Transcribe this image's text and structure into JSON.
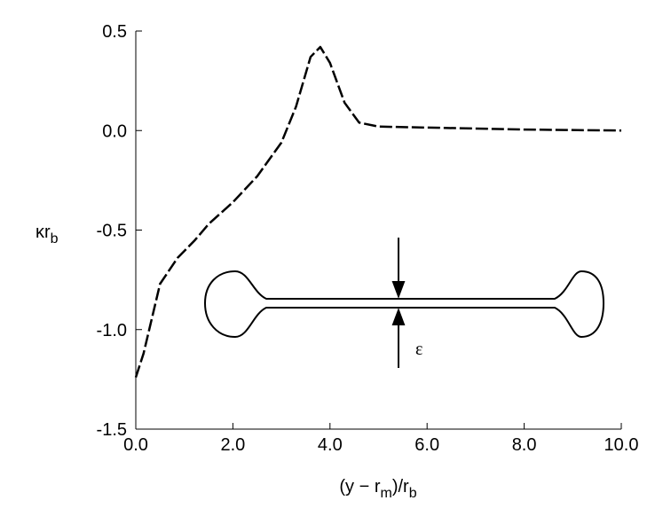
{
  "chart_data": {
    "type": "line",
    "x_label": [
      "(y − r",
      "m",
      ")/r",
      "b"
    ],
    "y_label": [
      "κr",
      "b"
    ],
    "inset_label": "ε",
    "x": [
      0.0,
      0.16,
      0.5,
      0.86,
      1.22,
      1.5,
      2.0,
      2.5,
      3.0,
      3.3,
      3.6,
      3.8,
      4.0,
      4.3,
      4.6,
      5.0,
      6.0,
      7.0,
      8.0,
      10.0
    ],
    "series": [
      {
        "color": "#000000",
        "values": [
          -1.24,
          -1.12,
          -0.77,
          -0.64,
          -0.55,
          -0.47,
          -0.36,
          -0.23,
          -0.06,
          0.12,
          0.37,
          0.42,
          0.34,
          0.14,
          0.04,
          0.02,
          0.015,
          0.01,
          0.005,
          0.0
        ]
      }
    ],
    "xlim": [
      0,
      10
    ],
    "ylim": [
      -1.5,
      0.5
    ],
    "xticks": [
      {
        "value": 0,
        "label": "0.0"
      },
      {
        "value": 2,
        "label": "2.0"
      },
      {
        "value": 4,
        "label": "4.0"
      },
      {
        "value": 6,
        "label": "6.0"
      },
      {
        "value": 8,
        "label": "8.0"
      },
      {
        "value": 10,
        "label": "10.0"
      }
    ],
    "yticks": [
      -1.5,
      {
        "value": -1,
        "label": "-1.0"
      },
      -0.5,
      {
        "value": 0,
        "label": "0.0"
      },
      0.5
    ],
    "dashed": true
  }
}
